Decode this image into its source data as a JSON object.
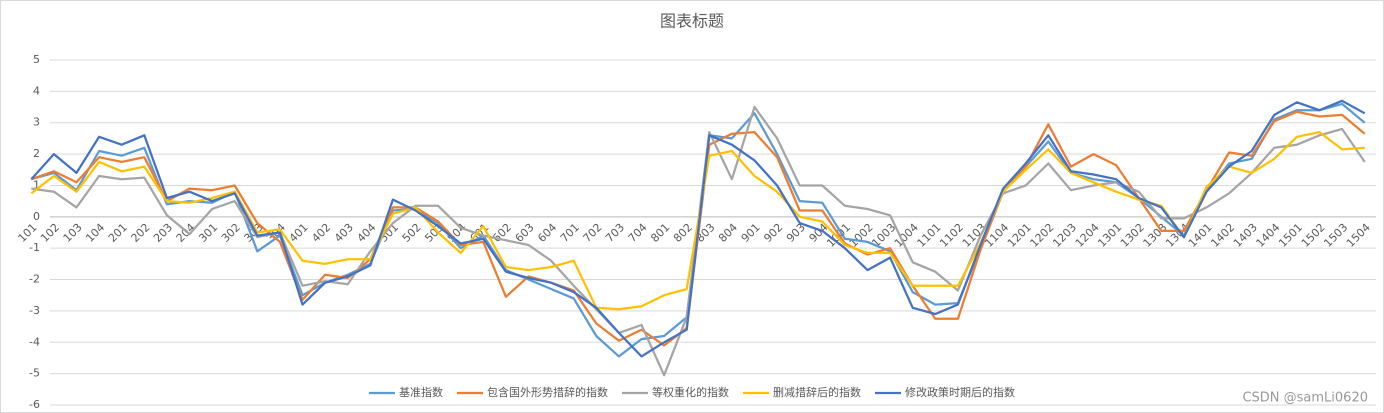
{
  "chart_data": {
    "type": "line",
    "title": "图表标题",
    "categories": [
      "101",
      "102",
      "103",
      "104",
      "201",
      "202",
      "203",
      "204",
      "301",
      "302",
      "303",
      "304",
      "401",
      "402",
      "403",
      "404",
      "501",
      "502",
      "503",
      "504",
      "601",
      "602",
      "603",
      "604",
      "701",
      "702",
      "703",
      "704",
      "801",
      "802",
      "803",
      "804",
      "901",
      "902",
      "903",
      "904",
      "1001",
      "1002",
      "1003",
      "1004",
      "1101",
      "1102",
      "1103",
      "1104",
      "1201",
      "1202",
      "1203",
      "1204",
      "1301",
      "1302",
      "1303",
      "1304",
      "1401",
      "1402",
      "1403",
      "1404",
      "1501",
      "1502",
      "1503",
      "1504"
    ],
    "series": [
      {
        "name": "基准指数",
        "color": "#5B9BD5",
        "values": [
          1.2,
          1.4,
          0.85,
          2.1,
          1.95,
          2.2,
          0.4,
          0.5,
          0.45,
          0.8,
          -1.1,
          -0.6,
          -2.5,
          -2.1,
          -1.85,
          -1.5,
          0.2,
          0.25,
          -0.2,
          -1.0,
          -0.6,
          -1.7,
          -2.0,
          -2.3,
          -2.6,
          -3.8,
          -4.45,
          -3.9,
          -3.8,
          -3.2,
          2.6,
          2.5,
          3.3,
          2.0,
          0.5,
          0.45,
          -0.7,
          -0.8,
          -1.1,
          -2.4,
          -2.8,
          -2.75,
          -1.0,
          0.8,
          1.6,
          2.4,
          1.4,
          1.2,
          1.1,
          0.6,
          0.0,
          -0.6,
          0.8,
          1.7,
          1.85,
          3.1,
          3.4,
          3.4,
          3.6,
          3.0
        ]
      },
      {
        "name": "包含国外形势措辞的指数",
        "color": "#ED7D31",
        "values": [
          1.2,
          1.45,
          1.1,
          1.9,
          1.75,
          1.9,
          0.5,
          0.9,
          0.85,
          1.0,
          -0.2,
          -0.8,
          -2.65,
          -1.85,
          -1.95,
          -1.35,
          0.3,
          0.3,
          -0.15,
          -0.9,
          -0.8,
          -2.55,
          -1.9,
          -2.1,
          -2.35,
          -3.4,
          -3.95,
          -3.6,
          -4.1,
          -3.55,
          2.3,
          2.65,
          2.7,
          1.9,
          0.2,
          0.2,
          -0.85,
          -1.2,
          -1.0,
          -2.2,
          -3.25,
          -3.25,
          -1.05,
          0.8,
          1.6,
          2.95,
          1.6,
          2.0,
          1.65,
          0.6,
          -0.45,
          -0.45,
          0.85,
          2.05,
          1.95,
          3.05,
          3.35,
          3.2,
          3.25,
          2.65
        ]
      },
      {
        "name": "等权重化的指数",
        "color": "#A5A5A5",
        "values": [
          0.9,
          0.8,
          0.3,
          1.3,
          1.2,
          1.25,
          0.05,
          -0.55,
          0.25,
          0.5,
          -0.65,
          -0.5,
          -2.2,
          -2.05,
          -2.15,
          -1.1,
          -0.2,
          0.35,
          0.35,
          -0.35,
          -0.6,
          -0.75,
          -0.9,
          -1.4,
          -2.2,
          -2.95,
          -3.7,
          -3.45,
          -5.05,
          -3.2,
          2.7,
          1.2,
          3.5,
          2.5,
          1.0,
          1.0,
          0.35,
          0.25,
          0.05,
          -1.45,
          -1.75,
          -2.35,
          -0.6,
          0.75,
          1.0,
          1.7,
          0.85,
          1.0,
          1.1,
          0.8,
          -0.05,
          -0.05,
          0.3,
          0.75,
          1.4,
          2.2,
          2.3,
          2.6,
          2.8,
          1.75
        ]
      },
      {
        "name": "删减措辞后的指数",
        "color": "#FFC000",
        "values": [
          0.75,
          1.3,
          0.8,
          1.75,
          1.45,
          1.6,
          0.5,
          0.45,
          0.6,
          0.8,
          -0.5,
          -0.4,
          -1.4,
          -1.5,
          -1.35,
          -1.35,
          0.1,
          0.3,
          -0.5,
          -1.15,
          -0.3,
          -1.6,
          -1.7,
          -1.6,
          -1.4,
          -2.9,
          -2.95,
          -2.85,
          -2.5,
          -2.3,
          1.95,
          2.1,
          1.3,
          0.8,
          0.0,
          -0.15,
          -0.9,
          -1.15,
          -1.15,
          -2.2,
          -2.2,
          -2.2,
          -0.85,
          0.8,
          1.5,
          2.15,
          1.4,
          1.1,
          0.8,
          0.55,
          0.35,
          -0.65,
          0.95,
          1.6,
          1.4,
          1.85,
          2.55,
          2.7,
          2.15,
          2.2
        ]
      },
      {
        "name": "修改政策时期后的指数",
        "color": "#4472C4",
        "values": [
          1.2,
          2.0,
          1.4,
          2.55,
          2.3,
          2.6,
          0.6,
          0.8,
          0.5,
          0.75,
          -0.6,
          -0.5,
          -2.8,
          -2.1,
          -1.9,
          -1.55,
          0.55,
          0.2,
          -0.3,
          -0.85,
          -0.7,
          -1.75,
          -1.95,
          -2.1,
          -2.4,
          -2.9,
          -3.7,
          -4.45,
          -4.0,
          -3.6,
          2.6,
          2.3,
          1.8,
          1.0,
          -0.2,
          -0.45,
          -1.0,
          -1.7,
          -1.3,
          -2.9,
          -3.1,
          -2.8,
          -0.9,
          0.9,
          1.7,
          2.6,
          1.45,
          1.35,
          1.2,
          0.6,
          0.3,
          -0.65,
          0.8,
          1.6,
          2.1,
          3.25,
          3.65,
          3.4,
          3.7,
          3.3
        ]
      }
    ],
    "ylim": [
      -6,
      5
    ],
    "yticks": [
      -6,
      -5,
      -4,
      -3,
      -2,
      -1,
      0,
      1,
      2,
      3,
      4,
      5
    ],
    "grid": true,
    "legend": "bottom",
    "watermark": "CSDN @samLi0620"
  }
}
